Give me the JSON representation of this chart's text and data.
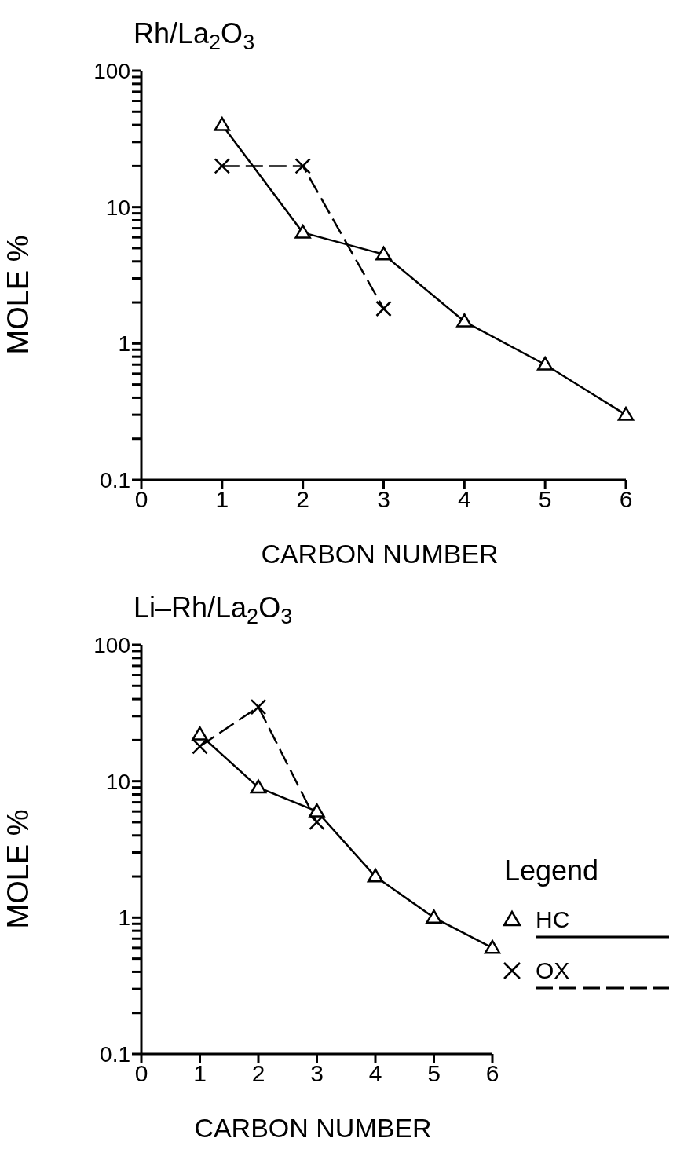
{
  "chart_data": [
    {
      "type": "line",
      "title": "Rh/La$_{2}$O$_{3}$",
      "xlabel": "CARBON NUMBER",
      "ylabel": "MOLE %",
      "log": "y",
      "xlim": [
        0,
        6
      ],
      "xticks": [
        0,
        1,
        2,
        3,
        4,
        5,
        6
      ],
      "ylim": [
        0.1,
        100
      ],
      "yticks": [
        0.1,
        {
          "value": 0.2,
          "label": null
        },
        {
          "value": 0.3,
          "label": null
        },
        {
          "value": 0.4,
          "label": null
        },
        {
          "value": 0.5,
          "label": null
        },
        {
          "value": 0.6,
          "label": null
        },
        {
          "value": 0.7,
          "label": null
        },
        {
          "value": 0.8,
          "label": null
        },
        {
          "value": 0.9,
          "label": null
        },
        1,
        {
          "value": 2,
          "label": null
        },
        {
          "value": 3,
          "label": null
        },
        {
          "value": 4,
          "label": null
        },
        {
          "value": 5,
          "label": null
        },
        {
          "value": 6,
          "label": null
        },
        {
          "value": 7,
          "label": null
        },
        {
          "value": 8,
          "label": null
        },
        {
          "value": 9,
          "label": null
        },
        10,
        {
          "value": 20,
          "label": null
        },
        {
          "value": 30,
          "label": null
        },
        {
          "value": 40,
          "label": null
        },
        {
          "value": 50,
          "label": null
        },
        {
          "value": 60,
          "label": null
        },
        {
          "value": 70,
          "label": null
        },
        {
          "value": 80,
          "label": null
        },
        {
          "value": 90,
          "label": null
        },
        100
      ],
      "grid": false,
      "legend": false,
      "series": [
        {
          "color": "#000000",
          "marker": "triangle",
          "line_style": "solid",
          "x": [
            1,
            2,
            3,
            4,
            5,
            6
          ],
          "values": [
            40,
            6.5,
            4.5,
            1.45,
            0.7,
            0.3
          ]
        },
        {
          "color": "#000000",
          "marker": "cross",
          "line_style": "dashed",
          "x": [
            1,
            2,
            3
          ],
          "values": [
            20,
            20,
            1.8
          ]
        }
      ]
    },
    {
      "type": "line",
      "title": "Li–Rh/La$_{2}$O$_{3}$",
      "xlabel": "CARBON NUMBER",
      "ylabel": "MOLE %",
      "legend_title": "Legend",
      "log": "y",
      "xlim": [
        0,
        6
      ],
      "xticks": [
        0,
        1,
        2,
        3,
        4,
        5,
        6
      ],
      "ylim": [
        0.1,
        100
      ],
      "yticks": [
        0.1,
        {
          "value": 0.2,
          "label": null
        },
        {
          "value": 0.3,
          "label": null
        },
        {
          "value": 0.4,
          "label": null
        },
        {
          "value": 0.5,
          "label": null
        },
        {
          "value": 0.6,
          "label": null
        },
        {
          "value": 0.7,
          "label": null
        },
        {
          "value": 0.8,
          "label": null
        },
        {
          "value": 0.9,
          "label": null
        },
        1,
        {
          "value": 2,
          "label": null
        },
        {
          "value": 3,
          "label": null
        },
        {
          "value": 4,
          "label": null
        },
        {
          "value": 5,
          "label": null
        },
        {
          "value": 6,
          "label": null
        },
        {
          "value": 7,
          "label": null
        },
        {
          "value": 8,
          "label": null
        },
        {
          "value": 9,
          "label": null
        },
        10,
        {
          "value": 20,
          "label": null
        },
        {
          "value": 30,
          "label": null
        },
        {
          "value": 40,
          "label": null
        },
        {
          "value": 50,
          "label": null
        },
        {
          "value": 60,
          "label": null
        },
        {
          "value": 70,
          "label": null
        },
        {
          "value": 80,
          "label": null
        },
        {
          "value": 90,
          "label": null
        },
        100
      ],
      "grid": false,
      "legend": "right",
      "series": [
        {
          "name": "HC",
          "color": "#000000",
          "marker": "triangle",
          "line_style": "solid",
          "x": [
            1,
            2,
            3,
            4,
            5,
            6
          ],
          "values": [
            22,
            9,
            6,
            2,
            1,
            0.6
          ]
        },
        {
          "name": "OX",
          "color": "#000000",
          "marker": "cross",
          "line_style": "dashed",
          "x": [
            1,
            2,
            3
          ],
          "values": [
            18,
            35,
            5
          ]
        }
      ]
    }
  ]
}
